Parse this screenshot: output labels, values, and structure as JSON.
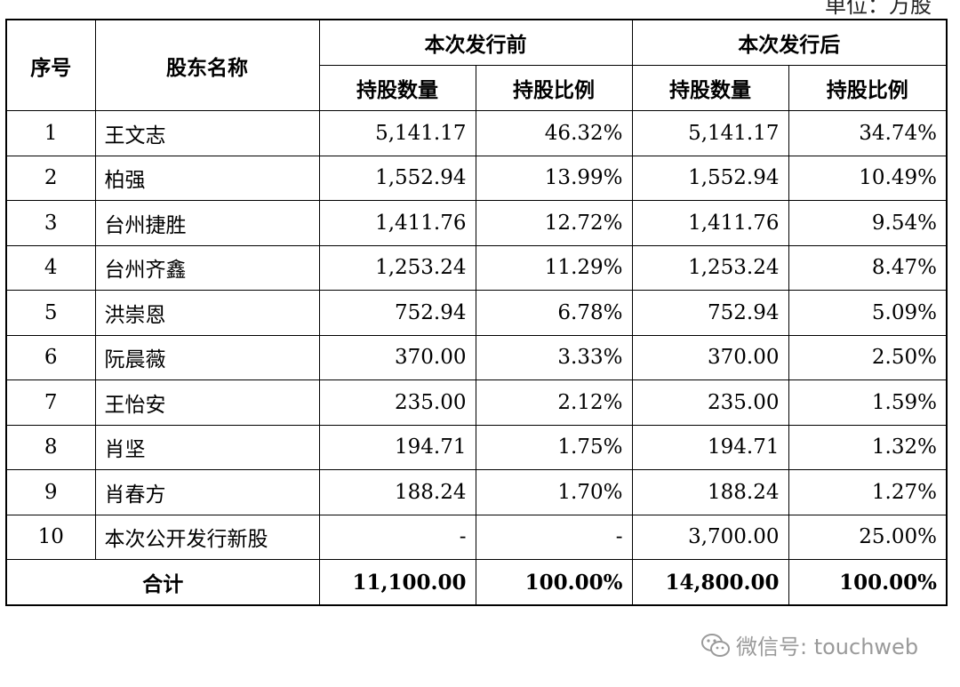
{
  "unit": "单位：万股",
  "table": {
    "headers": {
      "no": "序号",
      "name": "股东名称",
      "before": "本次发行前",
      "after": "本次发行后",
      "shares": "持股数量",
      "ratio": "持股比例"
    },
    "rows": [
      {
        "no": "1",
        "name": "王文志",
        "before_shares": "5,141.17",
        "before_ratio": "46.32%",
        "after_shares": "5,141.17",
        "after_ratio": "34.74%"
      },
      {
        "no": "2",
        "name": "柏强",
        "before_shares": "1,552.94",
        "before_ratio": "13.99%",
        "after_shares": "1,552.94",
        "after_ratio": "10.49%"
      },
      {
        "no": "3",
        "name": "台州捷胜",
        "before_shares": "1,411.76",
        "before_ratio": "12.72%",
        "after_shares": "1,411.76",
        "after_ratio": "9.54%"
      },
      {
        "no": "4",
        "name": "台州齐鑫",
        "before_shares": "1,253.24",
        "before_ratio": "11.29%",
        "after_shares": "1,253.24",
        "after_ratio": "8.47%"
      },
      {
        "no": "5",
        "name": "洪崇恩",
        "before_shares": "752.94",
        "before_ratio": "6.78%",
        "after_shares": "752.94",
        "after_ratio": "5.09%"
      },
      {
        "no": "6",
        "name": "阮晨薇",
        "before_shares": "370.00",
        "before_ratio": "3.33%",
        "after_shares": "370.00",
        "after_ratio": "2.50%"
      },
      {
        "no": "7",
        "name": "王怡安",
        "before_shares": "235.00",
        "before_ratio": "2.12%",
        "after_shares": "235.00",
        "after_ratio": "1.59%"
      },
      {
        "no": "8",
        "name": "肖坚",
        "before_shares": "194.71",
        "before_ratio": "1.75%",
        "after_shares": "194.71",
        "after_ratio": "1.32%"
      },
      {
        "no": "9",
        "name": "肖春方",
        "before_shares": "188.24",
        "before_ratio": "1.70%",
        "after_shares": "188.24",
        "after_ratio": "1.27%"
      },
      {
        "no": "10",
        "name": "本次公开发行新股",
        "before_shares": "-",
        "before_ratio": "-",
        "after_shares": "3,700.00",
        "after_ratio": "25.00%"
      }
    ],
    "total": {
      "label": "合计",
      "before_shares": "11,100.00",
      "before_ratio": "100.00%",
      "after_shares": "14,800.00",
      "after_ratio": "100.00%"
    }
  },
  "watermark": {
    "text": "微信号: touchweb",
    "icon": "wechat-icon"
  }
}
